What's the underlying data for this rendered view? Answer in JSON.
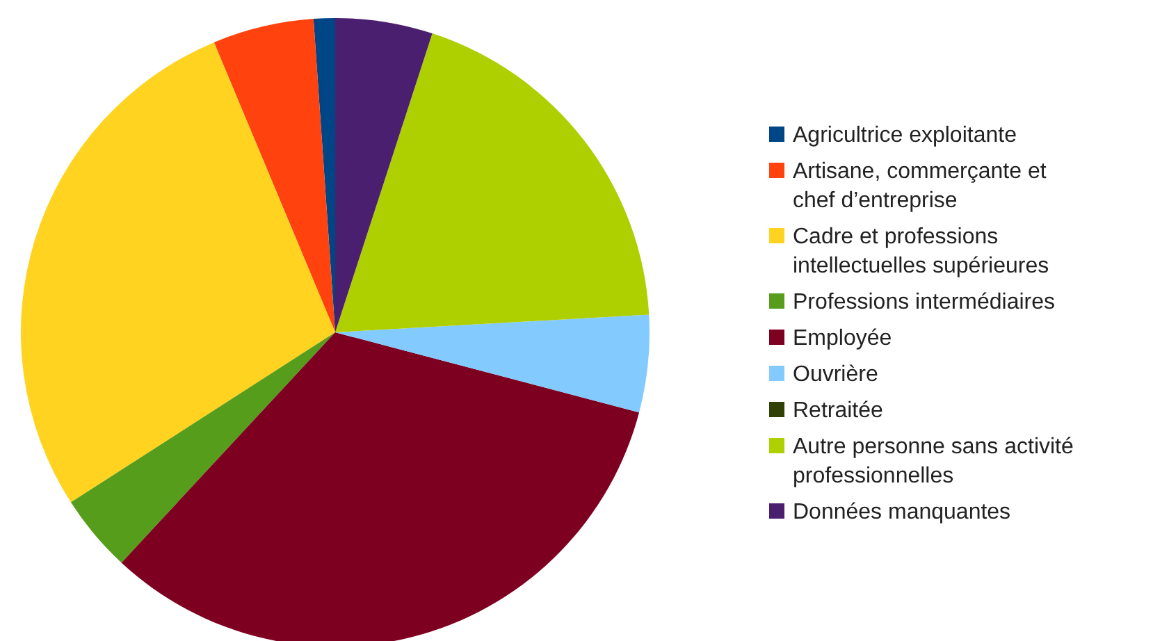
{
  "chart_data": {
    "type": "pie",
    "legend": "right",
    "categories": [
      "Agricultrice exploitante",
      "Artisane, commerçante et chef d’entreprise",
      "Cadre et professions intellectuelles supérieures",
      "Professions intermédiaires",
      "Employée",
      "Ouvrière",
      "Retraitée",
      "Autre personne sans activité professionnelles",
      "Données manquantes"
    ],
    "values": [
      1.1,
      5.2,
      27.8,
      4,
      32.8,
      5,
      0,
      19.1,
      5
    ],
    "colors": [
      "#004586",
      "#ff420e",
      "#ffd320",
      "#579d1c",
      "#7e0021",
      "#83caff",
      "#314004",
      "#aecf00",
      "#4b1f6f"
    ]
  }
}
